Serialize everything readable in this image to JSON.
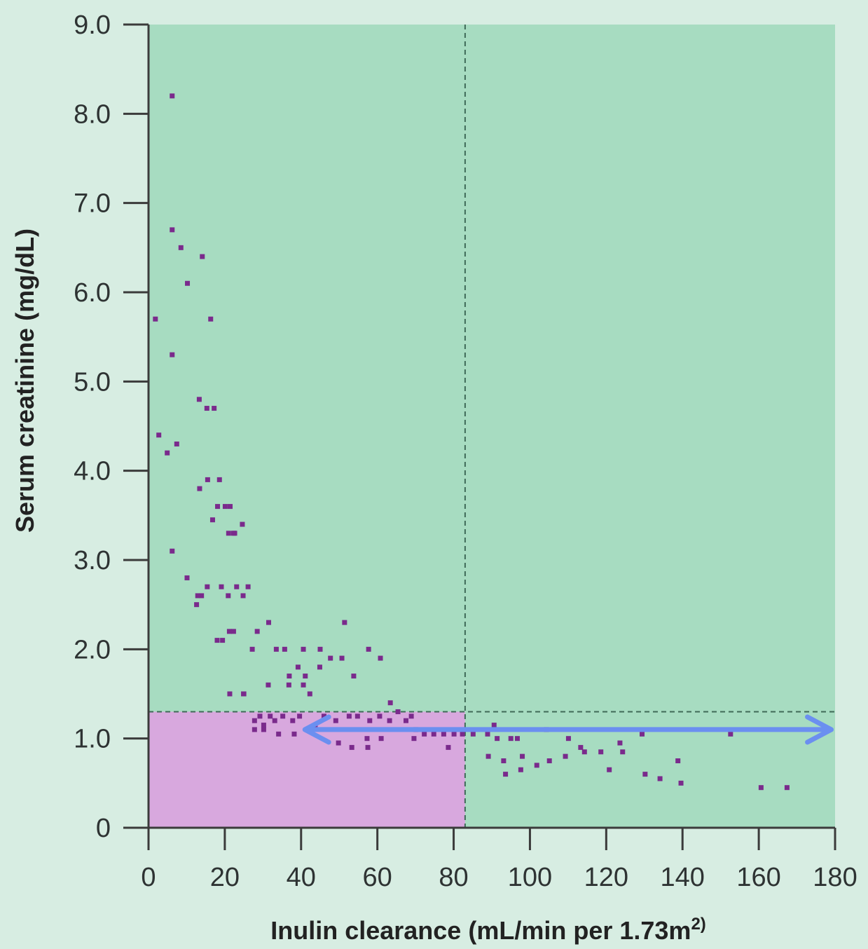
{
  "chart_data": {
    "type": "scatter",
    "xlabel": "Inulin clearance (mL/min per 1.73m",
    "xlabel_superscript": "2)",
    "ylabel": "Serum creatinine (mg/dL)",
    "xlim": [
      0,
      180
    ],
    "ylim": [
      0,
      9
    ],
    "x_ticks": [
      0,
      20,
      40,
      60,
      80,
      100,
      120,
      140,
      160,
      180
    ],
    "x_tick_labels": [
      "0",
      "20",
      "40",
      "60",
      "80",
      "100",
      "120",
      "140",
      "160",
      "180"
    ],
    "y_ticks": [
      0,
      1,
      2,
      3,
      4,
      5,
      6,
      7,
      8,
      9
    ],
    "y_tick_labels": [
      "0",
      "1.0",
      "2.0",
      "3.0",
      "4.0",
      "5.0",
      "6.0",
      "7.0",
      "8.0",
      "9.0"
    ],
    "grid": false,
    "legend": "none",
    "reference_lines": {
      "x_dashed": 83,
      "y_dashed": 1.3
    },
    "highlight_region": {
      "x": [
        0,
        83
      ],
      "y": [
        0,
        1.3
      ]
    },
    "arrow": {
      "y": 1.1,
      "x_from": 41,
      "x_to": 179,
      "direction": "both"
    },
    "points": {
      "x": [
        6.2,
        6.2,
        8.5,
        14.1,
        10.2,
        1.8,
        16.3,
        6.2,
        13.3,
        15.3,
        17.2,
        2.7,
        7.4,
        4.9,
        13.4,
        15.5,
        18.6,
        18.1,
        20.1,
        21.4,
        22.3,
        16.8,
        21.0,
        22.6,
        24.6,
        6.2,
        10.1,
        12.9,
        13.9,
        12.6,
        15.4,
        19.1,
        20.9,
        23.1,
        24.8,
        26.1,
        25.0,
        21.2,
        22.3,
        18.0,
        19.4,
        31.5,
        28.5,
        35.7,
        33.5,
        27.2,
        40.6,
        45.0,
        51.4,
        47.7,
        50.7,
        57.7,
        60.8,
        39.2,
        41.1,
        44.9,
        36.9,
        36.8,
        40.6,
        42.3,
        53.8,
        31.4,
        21.3,
        24.9,
        63.4,
        29.2,
        27.8,
        30.2,
        31.9,
        33.1,
        35.2,
        37.8,
        39.6,
        43.7,
        46.0,
        49.1,
        52.6,
        54.8,
        58.0,
        60.6,
        63.2,
        65.4,
        67.5,
        68.9,
        70.1,
        72.3,
        74.8,
        77.4,
        80.1,
        82.3,
        85.1,
        88.9,
        91.4,
        95.0,
        90.6,
        96.7,
        27.8,
        30.2,
        34.1,
        38.2,
        49.8,
        53.3,
        57.5,
        61.0,
        57.3,
        78.6,
        69.6,
        89.1,
        93.1,
        98.0,
        101.8,
        104.3,
        110.1,
        113.3,
        118.6,
        123.6,
        129.4,
        152.6,
        105.1,
        109.3,
        114.3,
        120.8,
        124.3,
        130.2,
        134.1,
        138.8,
        139.6,
        160.6,
        167.4,
        97.6,
        93.6
      ],
      "y": [
        8.2,
        6.7,
        6.5,
        6.4,
        6.1,
        5.7,
        5.7,
        5.3,
        4.8,
        4.7,
        4.7,
        4.4,
        4.3,
        4.2,
        3.8,
        3.9,
        3.9,
        3.6,
        3.6,
        3.6,
        3.3,
        3.45,
        3.3,
        3.3,
        3.4,
        3.1,
        2.8,
        2.6,
        2.6,
        2.5,
        2.7,
        2.7,
        2.6,
        2.7,
        2.6,
        2.7,
        1.5,
        2.2,
        2.2,
        2.1,
        2.1,
        2.3,
        2.2,
        2.0,
        2.0,
        2.0,
        2.0,
        2.0,
        2.3,
        1.9,
        1.9,
        2.0,
        1.9,
        1.8,
        1.7,
        1.8,
        1.7,
        1.6,
        1.6,
        1.5,
        1.7,
        1.6,
        1.5,
        1.5,
        1.4,
        1.25,
        1.2,
        1.15,
        1.25,
        1.2,
        1.25,
        1.2,
        1.25,
        1.15,
        1.25,
        1.2,
        1.25,
        1.25,
        1.2,
        1.25,
        1.2,
        1.3,
        1.2,
        1.25,
        1.1,
        1.05,
        1.05,
        1.05,
        1.05,
        1.05,
        1.05,
        1.05,
        1.0,
        1.0,
        1.15,
        1.0,
        1.1,
        1.1,
        1.05,
        1.05,
        0.95,
        0.9,
        0.9,
        1.0,
        1.0,
        0.9,
        1.0,
        0.8,
        0.75,
        0.8,
        0.7,
        1.1,
        1.0,
        0.9,
        0.85,
        0.95,
        1.05,
        1.05,
        0.75,
        0.8,
        0.85,
        0.65,
        0.85,
        0.6,
        0.55,
        0.75,
        0.5,
        0.45,
        0.45,
        0.65,
        0.6
      ]
    }
  }
}
